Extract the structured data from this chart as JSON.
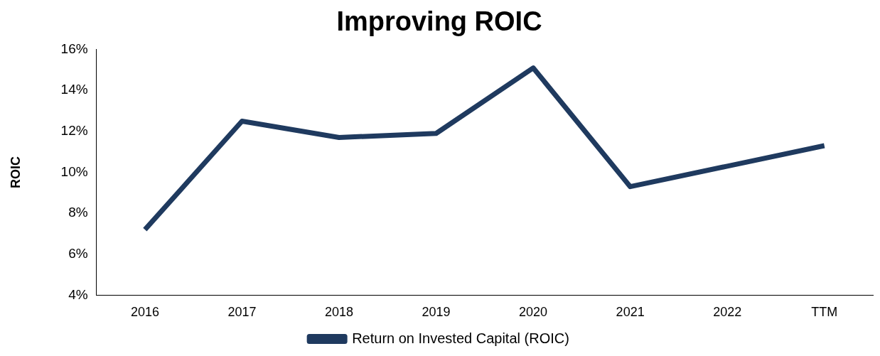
{
  "chart_data": {
    "type": "line",
    "title": "Improving ROIC",
    "ylabel": "ROIC",
    "categories": [
      "2016",
      "2017",
      "2018",
      "2019",
      "2020",
      "2021",
      "2022",
      "TTM"
    ],
    "series": [
      {
        "name": "Return on Invested Capital (ROIC)",
        "color": "#1f3a5f",
        "values": [
          7.2,
          12.5,
          11.7,
          11.9,
          15.1,
          9.3,
          10.3,
          11.3
        ]
      }
    ],
    "ylim": [
      4,
      16
    ],
    "yticks": [
      {
        "value": 4,
        "label": "4%"
      },
      {
        "value": 6,
        "label": "6%"
      },
      {
        "value": 8,
        "label": "8%"
      },
      {
        "value": 10,
        "label": "10%"
      },
      {
        "value": 12,
        "label": "12%"
      },
      {
        "value": 14,
        "label": "14%"
      },
      {
        "value": 16,
        "label": "16%"
      }
    ],
    "grid": false,
    "legend": "bottom",
    "marker": "none",
    "line_style": "solid"
  }
}
